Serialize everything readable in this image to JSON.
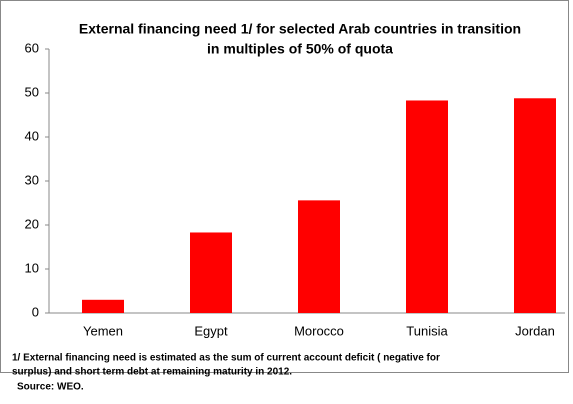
{
  "chart_data": {
    "type": "bar",
    "title": "External financing need 1/ for selected Arab countries in transition",
    "subtitle": "in multiples of 50% of quota",
    "categories": [
      "Yemen",
      "Egypt",
      "Morocco",
      "Tunisia",
      "Jordan"
    ],
    "values": [
      3,
      18.3,
      25.6,
      48.3,
      48.8
    ],
    "color": "#ff0000",
    "ylim": [
      0,
      60
    ],
    "yticks": [
      0,
      10,
      20,
      30,
      40,
      50,
      60
    ],
    "grid": false,
    "footnote": [
      "1/ External financing need is estimated as the sum of current account deficit ( negative for",
      "surplus) and short term debt at remaining maturity in 2012."
    ],
    "source": "Source: WEO."
  }
}
